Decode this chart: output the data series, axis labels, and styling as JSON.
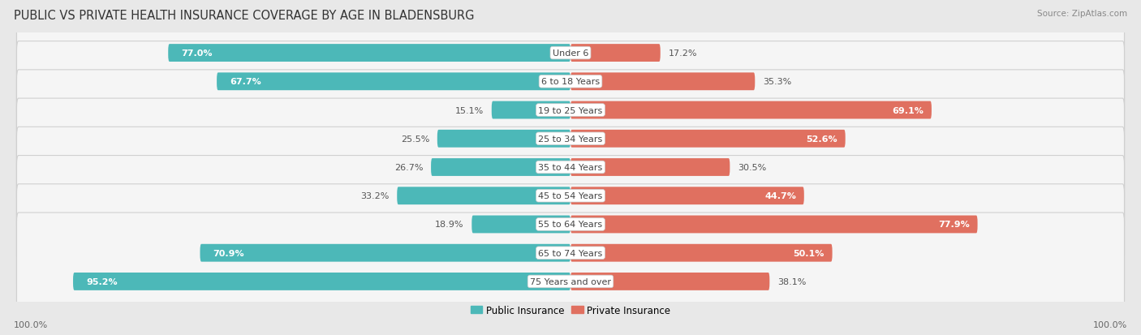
{
  "title": "PUBLIC VS PRIVATE HEALTH INSURANCE COVERAGE BY AGE IN BLADENSBURG",
  "source": "Source: ZipAtlas.com",
  "categories": [
    "Under 6",
    "6 to 18 Years",
    "19 to 25 Years",
    "25 to 34 Years",
    "35 to 44 Years",
    "45 to 54 Years",
    "55 to 64 Years",
    "65 to 74 Years",
    "75 Years and over"
  ],
  "public_values": [
    77.0,
    67.7,
    15.1,
    25.5,
    26.7,
    33.2,
    18.9,
    70.9,
    95.2
  ],
  "private_values": [
    17.2,
    35.3,
    69.1,
    52.6,
    30.5,
    44.7,
    77.9,
    50.1,
    38.1
  ],
  "public_color": "#4cb8b8",
  "public_color_light": "#7dd4d4",
  "private_color": "#e07060",
  "private_color_light": "#f0a898",
  "public_label": "Public Insurance",
  "private_label": "Private Insurance",
  "axis_label_left": "100.0%",
  "axis_label_right": "100.0%",
  "bg_color": "#e8e8e8",
  "row_bg_color": "#f5f5f5",
  "row_border_color": "#d0d0d0",
  "title_fontsize": 10.5,
  "source_fontsize": 7.5,
  "bar_label_fontsize": 8,
  "category_fontsize": 8,
  "legend_fontsize": 8.5,
  "axis_fontsize": 8
}
